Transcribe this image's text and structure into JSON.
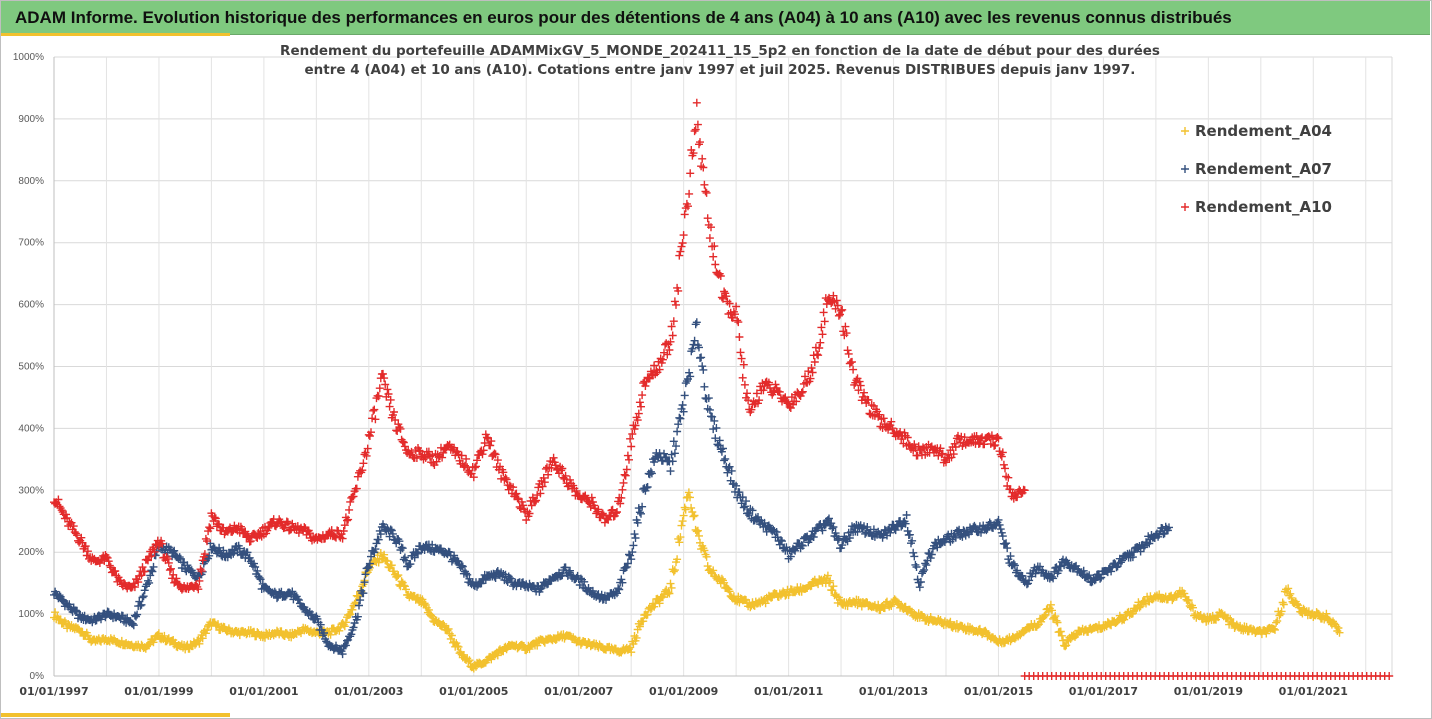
{
  "header": {
    "title": "ADAM Informe. Evolution historique des performances en euros pour des détentions de 4 ans (A04) à 10 ans (A10) avec les revenus connus distribués"
  },
  "chart_data": {
    "type": "scatter",
    "subtitle_lines": [
      "Rendement du portefeuille ADAMMixGV_5_MONDE_202411_15_5p2 en fonction de la date de début pour des durées",
      "entre 4 (A04) et 10 ans (A10). Cotations entre janv 1997 et juil 2025. Revenus DISTRIBUES depuis janv 1997."
    ],
    "y_ticks": [
      "0%",
      "100%",
      "200%",
      "300%",
      "400%",
      "500%",
      "600%",
      "700%",
      "800%",
      "900%",
      "1000%"
    ],
    "ylim": [
      0,
      1000
    ],
    "x_ticks": [
      "01/01/1997",
      "01/01/1999",
      "01/01/2001",
      "01/01/2003",
      "01/01/2005",
      "01/01/2007",
      "01/01/2009",
      "01/01/2011",
      "01/01/2013",
      "01/01/2015",
      "01/01/2017",
      "01/01/2019",
      "01/01/2021"
    ],
    "xlim": [
      1997.0,
      2022.5
    ],
    "grid": "vertical and horizontal gridlines",
    "legend_position": "top-right",
    "marker": "+",
    "series": [
      {
        "name": "Rendement_A04",
        "color": "#f2c12e",
        "x": [
          1997.0,
          1997.25,
          1997.5,
          1997.75,
          1998.0,
          1998.25,
          1998.5,
          1998.75,
          1999.0,
          1999.25,
          1999.5,
          1999.75,
          2000.0,
          2000.25,
          2000.5,
          2000.75,
          2001.0,
          2001.25,
          2001.5,
          2001.75,
          2002.0,
          2002.25,
          2002.5,
          2002.75,
          2003.0,
          2003.25,
          2003.5,
          2003.75,
          2004.0,
          2004.25,
          2004.5,
          2004.75,
          2005.0,
          2005.25,
          2005.5,
          2005.75,
          2006.0,
          2006.25,
          2006.5,
          2006.75,
          2007.0,
          2007.25,
          2007.5,
          2007.75,
          2008.0,
          2008.25,
          2008.5,
          2008.75,
          2009.0,
          2009.1,
          2009.25,
          2009.5,
          2009.75,
          2010.0,
          2010.25,
          2010.5,
          2010.75,
          2011.0,
          2011.25,
          2011.5,
          2011.75,
          2012.0,
          2012.25,
          2012.5,
          2012.75,
          2013.0,
          2013.25,
          2013.5,
          2013.75,
          2014.0,
          2014.25,
          2014.5,
          2014.75,
          2015.0,
          2015.25,
          2015.5,
          2015.75,
          2016.0,
          2016.25,
          2016.5,
          2016.75,
          2017.0,
          2017.25,
          2017.5,
          2017.75,
          2018.0,
          2018.25,
          2018.5,
          2018.75,
          2019.0,
          2019.25,
          2019.5,
          2019.75,
          2020.0,
          2020.25,
          2020.5,
          2020.75,
          2021.0,
          2021.25,
          2021.5
        ],
        "y": [
          100,
          80,
          75,
          55,
          60,
          55,
          50,
          48,
          65,
          55,
          45,
          55,
          85,
          75,
          70,
          70,
          65,
          70,
          65,
          75,
          70,
          70,
          80,
          120,
          175,
          195,
          165,
          130,
          120,
          90,
          75,
          35,
          15,
          25,
          40,
          50,
          45,
          55,
          60,
          65,
          55,
          50,
          45,
          40,
          45,
          100,
          120,
          140,
          260,
          300,
          230,
          170,
          150,
          125,
          115,
          120,
          130,
          135,
          140,
          150,
          155,
          115,
          120,
          115,
          110,
          120,
          110,
          95,
          90,
          85,
          80,
          75,
          70,
          55,
          60,
          75,
          85,
          110,
          50,
          70,
          75,
          80,
          90,
          100,
          120,
          130,
          125,
          135,
          100,
          90,
          100,
          80,
          75,
          70,
          75,
          140,
          105,
          100,
          95,
          70
        ]
      },
      {
        "name": "Rendement_A07",
        "color": "#34507e",
        "x": [
          1997.0,
          1997.25,
          1997.5,
          1997.75,
          1998.0,
          1998.25,
          1998.5,
          1998.75,
          1999.0,
          1999.25,
          1999.5,
          1999.75,
          2000.0,
          2000.25,
          2000.5,
          2000.75,
          2001.0,
          2001.25,
          2001.5,
          2001.75,
          2002.0,
          2002.25,
          2002.5,
          2002.75,
          2003.0,
          2003.25,
          2003.5,
          2003.75,
          2004.0,
          2004.25,
          2004.5,
          2004.75,
          2005.0,
          2005.25,
          2005.5,
          2005.75,
          2006.0,
          2006.25,
          2006.5,
          2006.75,
          2007.0,
          2007.25,
          2007.5,
          2007.75,
          2008.0,
          2008.25,
          2008.5,
          2008.75,
          2009.0,
          2009.25,
          2009.5,
          2009.75,
          2010.0,
          2010.25,
          2010.5,
          2010.75,
          2011.0,
          2011.25,
          2011.5,
          2011.75,
          2012.0,
          2012.25,
          2012.5,
          2012.75,
          2013.0,
          2013.25,
          2013.5,
          2013.75,
          2014.0,
          2014.25,
          2014.5,
          2014.75,
          2015.0,
          2015.25,
          2015.5,
          2015.75,
          2016.0,
          2016.25,
          2016.5,
          2016.75,
          2017.0,
          2017.25,
          2017.5,
          2017.75,
          2018.0,
          2018.25
        ],
        "y": [
          135,
          115,
          95,
          90,
          100,
          95,
          85,
          140,
          210,
          200,
          175,
          160,
          210,
          195,
          205,
          190,
          140,
          130,
          135,
          110,
          90,
          50,
          40,
          90,
          180,
          240,
          225,
          180,
          210,
          205,
          200,
          175,
          145,
          160,
          165,
          150,
          145,
          140,
          160,
          170,
          155,
          135,
          125,
          135,
          200,
          300,
          360,
          340,
          440,
          560,
          420,
          360,
          300,
          265,
          245,
          230,
          195,
          215,
          230,
          250,
          210,
          240,
          235,
          225,
          240,
          255,
          150,
          210,
          220,
          230,
          235,
          240,
          245,
          180,
          150,
          175,
          160,
          185,
          175,
          155,
          165,
          180,
          195,
          210,
          230,
          240
        ]
      },
      {
        "name": "Rendement_A10",
        "color": "#e32b2b",
        "x": [
          1997.0,
          1997.25,
          1997.5,
          1997.75,
          1998.0,
          1998.25,
          1998.5,
          1998.75,
          1999.0,
          1999.25,
          1999.5,
          1999.75,
          2000.0,
          2000.25,
          2000.5,
          2000.75,
          2001.0,
          2001.25,
          2001.5,
          2001.75,
          2002.0,
          2002.25,
          2002.5,
          2002.75,
          2003.0,
          2003.25,
          2003.5,
          2003.75,
          2004.0,
          2004.25,
          2004.5,
          2004.75,
          2005.0,
          2005.25,
          2005.5,
          2005.75,
          2006.0,
          2006.25,
          2006.5,
          2006.75,
          2007.0,
          2007.25,
          2007.5,
          2007.75,
          2008.0,
          2008.25,
          2008.5,
          2008.75,
          2009.0,
          2009.25,
          2009.5,
          2009.75,
          2010.0,
          2010.25,
          2010.5,
          2010.75,
          2011.0,
          2011.25,
          2011.5,
          2011.75,
          2012.0,
          2012.25,
          2012.5,
          2012.75,
          2013.0,
          2013.25,
          2013.5,
          2013.75,
          2014.0,
          2014.25,
          2014.5,
          2014.75,
          2015.0,
          2015.25,
          2015.5
        ],
        "y": [
          290,
          250,
          220,
          185,
          190,
          150,
          140,
          180,
          220,
          160,
          140,
          150,
          260,
          230,
          240,
          220,
          235,
          250,
          240,
          235,
          220,
          230,
          230,
          300,
          380,
          480,
          410,
          360,
          360,
          350,
          370,
          350,
          330,
          390,
          330,
          300,
          260,
          300,
          350,
          320,
          290,
          280,
          250,
          270,
          380,
          470,
          500,
          540,
          720,
          900,
          720,
          610,
          580,
          420,
          470,
          460,
          440,
          460,
          510,
          610,
          590,
          480,
          440,
          410,
          400,
          380,
          360,
          370,
          350,
          380,
          380,
          380,
          380,
          290,
          300
        ]
      }
    ],
    "zero_marker_series": {
      "color": "#e32b2b",
      "x_start": 2015.5,
      "x_end": 2022.5,
      "value": 0
    }
  }
}
